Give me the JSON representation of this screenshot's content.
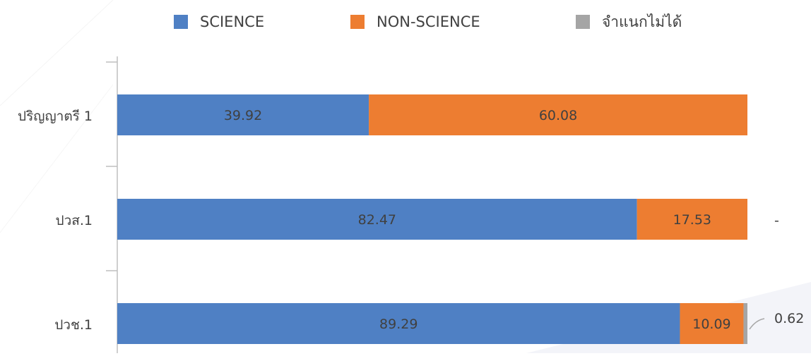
{
  "chart_data": {
    "type": "bar",
    "orientation": "horizontal",
    "stacked": true,
    "categories": [
      "ปริญญาตรี 1",
      "ปวส.1",
      "ปวช.1"
    ],
    "series": [
      {
        "name": "SCIENCE",
        "color": "#4f80c4",
        "values": [
          39.92,
          82.47,
          89.29
        ],
        "labels": [
          "39.92",
          "82.47",
          "89.29"
        ]
      },
      {
        "name": "NON-SCIENCE",
        "color": "#ed7d31",
        "values": [
          60.08,
          17.53,
          10.09
        ],
        "labels": [
          "60.08",
          "17.53",
          "10.09"
        ]
      },
      {
        "name": "จำแนกไม่ได้",
        "color": "#a5a5a5",
        "values": [
          0,
          0,
          0.62
        ],
        "labels": [
          "",
          "-",
          "0.62"
        ]
      }
    ],
    "xlim": [
      0,
      100
    ],
    "legend_position": "top",
    "grid": false
  }
}
